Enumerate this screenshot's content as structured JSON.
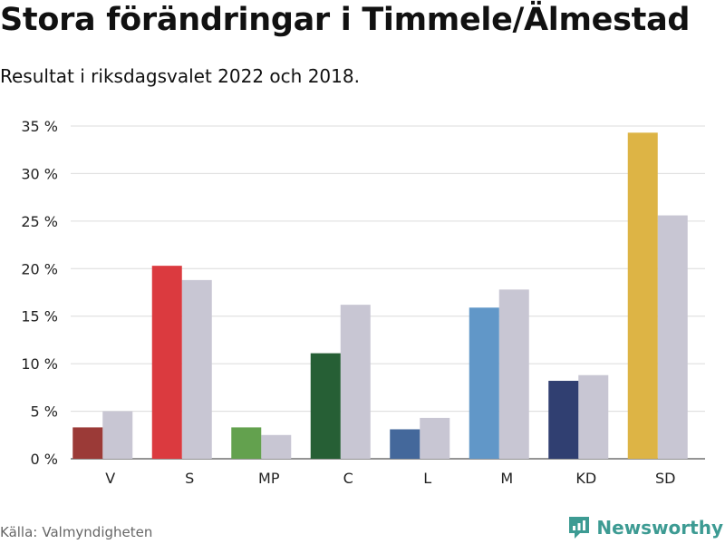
{
  "title": "Stora förändringar i Timmele/Älmestad",
  "subtitle": "Resultat i riksdagsvalet 2022 och 2018.",
  "source": {
    "prefix": "Källa:",
    "name": "Valmyndigheten"
  },
  "brand": {
    "name": "Newsworthy",
    "color": "#3d9b93",
    "icon": "bar-chart-icon"
  },
  "chart_data": {
    "type": "bar",
    "title": "Stora förändringar i Timmele/Älmestad",
    "subtitle": "Resultat i riksdagsvalet 2022 och 2018.",
    "xlabel": "",
    "ylabel": "",
    "ylim": [
      0,
      35
    ],
    "yticks": [
      0,
      5,
      10,
      15,
      20,
      25,
      30,
      35
    ],
    "ytick_labels": [
      "0 %",
      "5 %",
      "10 %",
      "15 %",
      "20 %",
      "25 %",
      "30 %",
      "35 %"
    ],
    "grid": true,
    "categories": [
      "V",
      "S",
      "MP",
      "C",
      "L",
      "M",
      "KD",
      "SD"
    ],
    "series": [
      {
        "name": "2022",
        "values": [
          3.3,
          20.3,
          3.3,
          11.1,
          3.1,
          15.9,
          8.2,
          34.3
        ],
        "colors": [
          "#9b3a37",
          "#db3a3f",
          "#63a14e",
          "#265f35",
          "#44689b",
          "#6197c8",
          "#303f71",
          "#ddb445"
        ]
      },
      {
        "name": "2018",
        "values": [
          5.0,
          18.8,
          2.5,
          16.2,
          4.3,
          17.8,
          8.8,
          25.6
        ],
        "color": "#c8c6d3"
      }
    ]
  }
}
